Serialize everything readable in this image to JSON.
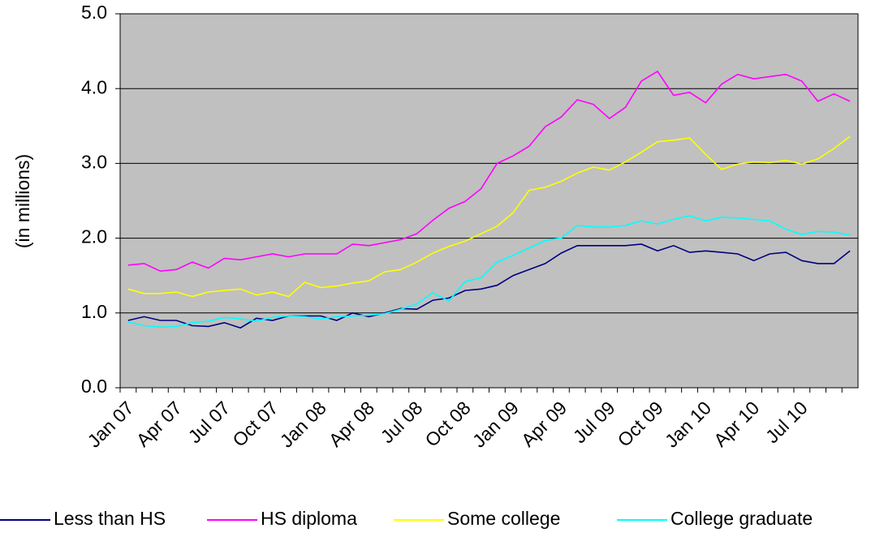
{
  "chart_data": {
    "type": "line",
    "y_label": "(in millions)",
    "categories": [
      "Jan 07",
      null,
      null,
      "Apr 07",
      null,
      null,
      "Jul 07",
      null,
      null,
      "Oct 07",
      null,
      null,
      "Jan 08",
      null,
      null,
      "Apr 08",
      null,
      null,
      "Jul 08",
      null,
      null,
      "Oct 08",
      null,
      null,
      "Jan 09",
      null,
      null,
      "Apr 09",
      null,
      null,
      "Jul 09",
      null,
      null,
      "Oct 09",
      null,
      null,
      "Jan 10",
      null,
      null,
      "Apr 10",
      null,
      null,
      "Jul 10",
      null,
      null,
      null
    ],
    "series": [
      {
        "name": "Less than HS",
        "color": "#000080",
        "values": [
          0.9,
          0.95,
          0.9,
          0.9,
          0.83,
          0.82,
          0.87,
          0.8,
          0.93,
          0.9,
          0.96,
          0.96,
          0.96,
          0.9,
          1.0,
          0.95,
          1.0,
          1.06,
          1.05,
          1.17,
          1.2,
          1.3,
          1.32,
          1.37,
          1.5,
          1.58,
          1.66,
          1.8,
          1.9,
          1.9,
          1.9,
          1.9,
          1.92,
          1.83,
          1.9,
          1.81,
          1.83,
          1.81,
          1.79,
          1.7,
          1.79,
          1.81,
          1.7,
          1.66,
          1.66,
          1.83
        ]
      },
      {
        "name": "HS diploma",
        "color": "#ff00ff",
        "values": [
          1.64,
          1.66,
          1.56,
          1.58,
          1.68,
          1.6,
          1.73,
          1.71,
          1.75,
          1.79,
          1.75,
          1.79,
          1.79,
          1.79,
          1.92,
          1.9,
          1.94,
          1.98,
          2.06,
          2.24,
          2.4,
          2.49,
          2.66,
          3.0,
          3.1,
          3.23,
          3.49,
          3.62,
          3.85,
          3.79,
          3.6,
          3.75,
          4.1,
          4.23,
          3.91,
          3.95,
          3.81,
          4.06,
          4.19,
          4.13,
          4.16,
          4.19,
          4.1,
          3.83,
          3.93,
          3.83
        ]
      },
      {
        "name": "Some college",
        "color": "#ffff00",
        "values": [
          1.32,
          1.26,
          1.26,
          1.28,
          1.22,
          1.28,
          1.3,
          1.32,
          1.24,
          1.28,
          1.22,
          1.41,
          1.34,
          1.36,
          1.4,
          1.43,
          1.55,
          1.58,
          1.68,
          1.8,
          1.89,
          1.96,
          2.06,
          2.16,
          2.34,
          2.64,
          2.68,
          2.76,
          2.87,
          2.95,
          2.91,
          3.02,
          3.15,
          3.29,
          3.31,
          3.34,
          3.12,
          2.92,
          2.99,
          3.02,
          3.01,
          3.04,
          2.99,
          3.06,
          3.2,
          3.36
        ]
      },
      {
        "name": "College graduate",
        "color": "#00ffff",
        "values": [
          0.88,
          0.83,
          0.81,
          0.82,
          0.87,
          0.89,
          0.94,
          0.92,
          0.89,
          0.94,
          0.96,
          0.95,
          0.92,
          0.95,
          0.96,
          0.97,
          0.99,
          1.05,
          1.12,
          1.27,
          1.16,
          1.42,
          1.47,
          1.68,
          1.77,
          1.87,
          1.97,
          2.0,
          2.17,
          2.15,
          2.15,
          2.17,
          2.23,
          2.19,
          2.25,
          2.3,
          2.23,
          2.28,
          2.27,
          2.25,
          2.23,
          2.12,
          2.05,
          2.09,
          2.08,
          2.04
        ]
      }
    ],
    "ylim": [
      0,
      5
    ],
    "yticks": [
      {
        "value": 0,
        "label": "0.0"
      },
      {
        "value": 1,
        "label": "1.0"
      },
      {
        "value": 2,
        "label": "2.0"
      },
      {
        "value": 3,
        "label": "3.0"
      },
      {
        "value": 4,
        "label": "4.0"
      },
      {
        "value": 5,
        "label": "5.0"
      }
    ],
    "grid": true,
    "legend": "bottom",
    "plot_background": "#c0c0c0"
  }
}
